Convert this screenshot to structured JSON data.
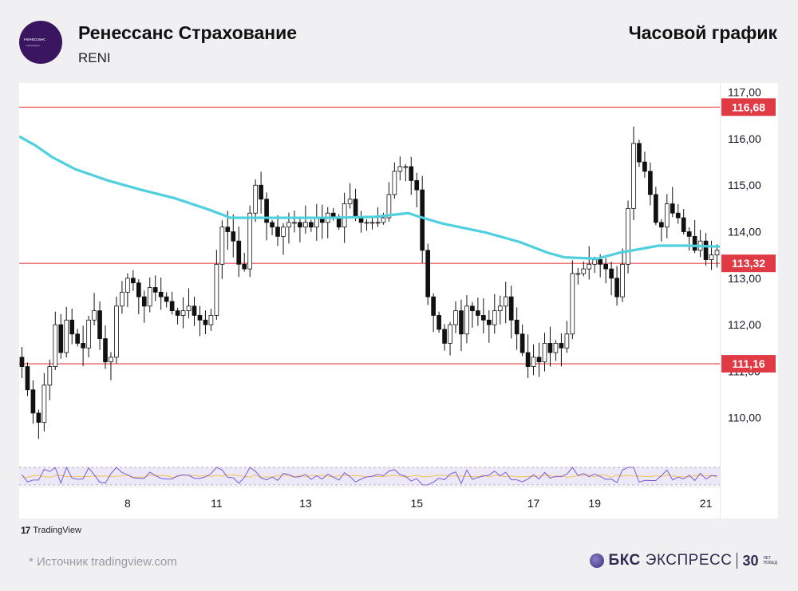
{
  "header": {
    "company": "Ренессанс Страхование",
    "ticker": "RENI",
    "chart_title": "Часовой график",
    "logo_text": "Ренессанс",
    "logo_sub": "страхование"
  },
  "footer": {
    "tradingview": "TradingView",
    "source": "*  Источник tradingview.com",
    "brand_bold": "БКС",
    "brand_regular": "ЭКСПРЕСС",
    "brand_years": "30",
    "brand_small1": "ЛЕТ",
    "brand_small2": "ПОБЕД"
  },
  "colors": {
    "up_candle": "#ffffff",
    "down_candle": "#111111",
    "moving_average": "#4fd0df",
    "level_line": "#e84a4a",
    "level_badge": "#e03a44",
    "oscillator_band": "#ece8f8",
    "oscillator_line": "#7b5cd6",
    "oscillator_signal": "#f2c24e"
  },
  "chart_data": {
    "type": "candlestick",
    "ylim": [
      109.0,
      117.2
    ],
    "y_ticks": [
      "117,00",
      "116,00",
      "115,00",
      "114,00",
      "113,00",
      "112,00",
      "111,00",
      "110,00"
    ],
    "y_tick_values": [
      117,
      116,
      115,
      114,
      113,
      112,
      111,
      110
    ],
    "x_ticks": [
      {
        "label": "8",
        "bar": 19
      },
      {
        "label": "11",
        "bar": 35
      },
      {
        "label": "13",
        "bar": 51
      },
      {
        "label": "15",
        "bar": 71
      },
      {
        "label": "17",
        "bar": 92
      },
      {
        "label": "19",
        "bar": 103
      },
      {
        "label": "21",
        "bar": 123
      }
    ],
    "levels": [
      {
        "value": 116.68,
        "label": "116,68"
      },
      {
        "value": 113.32,
        "label": "113,32"
      },
      {
        "value": 111.16,
        "label": "111,16"
      }
    ],
    "bar_count": 126,
    "close": [
      111.1,
      110.6,
      110.1,
      109.9,
      110.7,
      111.1,
      112.0,
      111.4,
      112.1,
      111.8,
      111.6,
      111.5,
      112.1,
      112.3,
      111.7,
      111.2,
      111.3,
      112.4,
      112.7,
      113.0,
      112.9,
      112.6,
      112.4,
      112.8,
      112.7,
      112.6,
      112.5,
      112.3,
      112.2,
      112.3,
      112.4,
      112.2,
      112.1,
      112.0,
      112.2,
      113.3,
      114.1,
      114.0,
      113.8,
      113.3,
      113.2,
      114.4,
      115.0,
      114.7,
      114.2,
      114.1,
      113.9,
      114.1,
      114.2,
      114.2,
      114.1,
      114.2,
      114.1,
      114.3,
      114.2,
      114.4,
      114.3,
      114.1,
      114.6,
      114.7,
      114.3,
      114.2,
      114.2,
      114.2,
      114.2,
      114.3,
      114.8,
      115.3,
      115.4,
      115.4,
      115.1,
      114.9,
      113.6,
      112.6,
      112.2,
      111.9,
      111.6,
      112.0,
      112.3,
      111.8,
      112.4,
      112.3,
      112.2,
      112.1,
      112.0,
      112.3,
      112.4,
      112.6,
      112.1,
      111.8,
      111.4,
      111.1,
      111.3,
      111.2,
      111.6,
      111.4,
      111.6,
      111.5,
      111.8,
      113.1,
      113.1,
      113.2,
      113.3,
      113.4,
      113.3,
      113.2,
      113.0,
      112.6,
      113.3,
      114.5,
      115.9,
      115.5,
      115.3,
      114.8,
      114.2,
      114.1,
      114.6,
      114.4,
      114.3,
      114.0,
      113.9,
      113.6,
      113.8,
      113.4,
      113.5,
      113.6
    ],
    "moving_average": [
      [
        0,
        116.05
      ],
      [
        3,
        115.85
      ],
      [
        6,
        115.6
      ],
      [
        10,
        115.35
      ],
      [
        16,
        115.1
      ],
      [
        22,
        114.9
      ],
      [
        28,
        114.72
      ],
      [
        34,
        114.48
      ],
      [
        38,
        114.3
      ],
      [
        46,
        114.3
      ],
      [
        56,
        114.3
      ],
      [
        64,
        114.32
      ],
      [
        70,
        114.4
      ],
      [
        72,
        114.32
      ],
      [
        76,
        114.18
      ],
      [
        84,
        113.98
      ],
      [
        90,
        113.78
      ],
      [
        95,
        113.55
      ],
      [
        98,
        113.45
      ],
      [
        104,
        113.42
      ],
      [
        108,
        113.55
      ],
      [
        115,
        113.7
      ],
      [
        120,
        113.7
      ],
      [
        126,
        113.68
      ]
    ],
    "oscillator": {
      "upper": 70,
      "lower": 30
    }
  }
}
